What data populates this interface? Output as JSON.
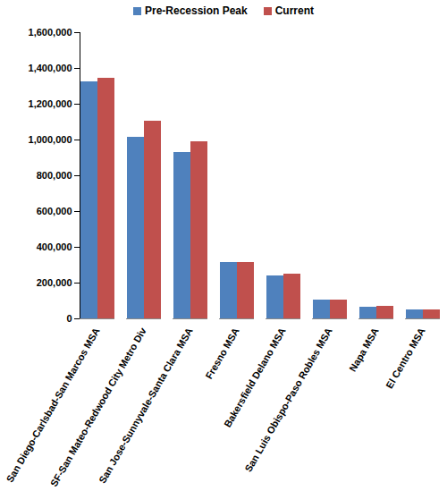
{
  "chart_data": {
    "type": "bar",
    "categories": [
      "San Diego-Carlsbad-San Marcos MSA",
      "SF-San Mateo-Redwood City Metro Div",
      "San Jose-Sunnyvale-Santa Clara MSA",
      "Fresno MSA",
      "Bakersfield Delano MSA",
      "San Luis Obispo-Paso Robles MSA",
      "Napa MSA",
      "El Centro MSA"
    ],
    "series": [
      {
        "name": "Pre-Recession Peak",
        "color": "#4f81bd",
        "values": [
          1325000,
          1015000,
          930000,
          315000,
          240000,
          105000,
          65000,
          50000
        ]
      },
      {
        "name": "Current",
        "color": "#c0504d",
        "values": [
          1345000,
          1105000,
          990000,
          315000,
          250000,
          105000,
          70000,
          50000
        ]
      }
    ],
    "ylim": [
      0,
      1600000
    ],
    "yticks": [
      0,
      {
        "value": 200000,
        "label": "200,000"
      },
      {
        "value": 400000,
        "label": "400,000"
      },
      {
        "value": 600000,
        "label": "600,000"
      },
      {
        "value": 800000,
        "label": "800,000"
      },
      {
        "value": 1000000,
        "label": "1,000,000"
      },
      {
        "value": 1200000,
        "label": "1,200,000"
      },
      {
        "value": 1400000,
        "label": "1,400,000"
      },
      {
        "value": 1600000,
        "label": "1,600,000"
      }
    ],
    "grid": false,
    "legend": "top"
  }
}
